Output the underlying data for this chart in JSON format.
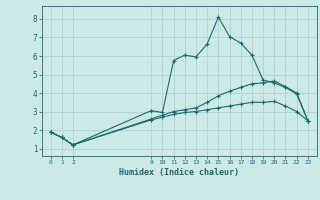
{
  "xlabel": "Humidex (Indice chaleur)",
  "bg_color": "#cce9e8",
  "grid_color": "#aad4d3",
  "line_color": "#1a6b6b",
  "xlim": [
    -0.8,
    23.8
  ],
  "ylim": [
    0.6,
    8.7
  ],
  "xticks": [
    0,
    1,
    2,
    9,
    10,
    11,
    12,
    13,
    14,
    15,
    16,
    17,
    18,
    19,
    20,
    21,
    22,
    23
  ],
  "yticks": [
    1,
    2,
    3,
    4,
    5,
    6,
    7,
    8
  ],
  "line1_x": [
    0,
    1,
    2,
    9,
    10,
    11,
    12,
    13,
    14,
    15,
    16,
    17,
    18,
    19,
    20,
    21,
    22,
    23
  ],
  "line1_y": [
    1.9,
    1.6,
    1.2,
    3.05,
    2.95,
    5.75,
    6.05,
    5.95,
    6.65,
    8.1,
    7.05,
    6.7,
    6.05,
    4.7,
    4.55,
    4.3,
    3.95,
    2.5
  ],
  "line2_x": [
    0,
    1,
    2,
    9,
    10,
    11,
    12,
    13,
    14,
    15,
    16,
    17,
    18,
    19,
    20,
    21,
    22,
    23
  ],
  "line2_y": [
    1.9,
    1.6,
    1.2,
    2.6,
    2.8,
    3.0,
    3.1,
    3.2,
    3.5,
    3.85,
    4.1,
    4.3,
    4.5,
    4.55,
    4.65,
    4.35,
    4.0,
    2.5
  ],
  "line3_x": [
    0,
    1,
    2,
    9,
    10,
    11,
    12,
    13,
    14,
    15,
    16,
    17,
    18,
    19,
    20,
    21,
    22,
    23
  ],
  "line3_y": [
    1.9,
    1.6,
    1.2,
    2.55,
    2.7,
    2.85,
    2.95,
    3.0,
    3.1,
    3.2,
    3.3,
    3.4,
    3.5,
    3.5,
    3.55,
    3.3,
    3.0,
    2.5
  ]
}
